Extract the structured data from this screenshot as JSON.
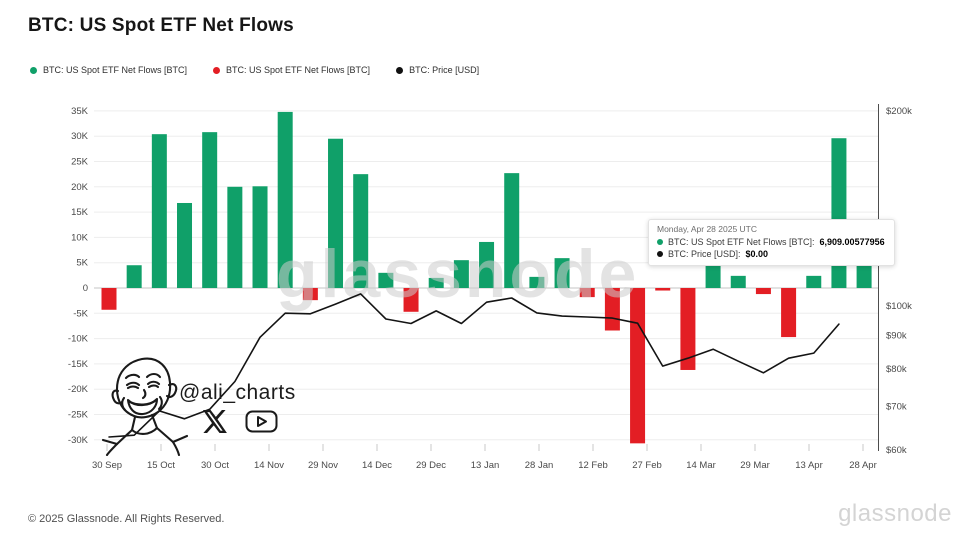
{
  "title": "BTC: US Spot ETF Net Flows",
  "legend": [
    {
      "label": "BTC: US Spot ETF Net Flows [BTC]",
      "color": "#10a069"
    },
    {
      "label": "BTC: US Spot ETF Net Flows [BTC]",
      "color": "#e31e24"
    },
    {
      "label": "BTC: Price [USD]",
      "color": "#111111"
    }
  ],
  "tooltip": {
    "title": "Monday, Apr 28 2025 UTC",
    "rows": [
      {
        "dot_color": "#10a069",
        "label": "BTC: US Spot ETF Net Flows [BTC]:",
        "value": "6,909.00577956"
      },
      {
        "dot_color": "#111111",
        "label": "BTC: Price [USD]:",
        "value": "$0.00"
      }
    ]
  },
  "annotation": {
    "handle": "@ali_charts"
  },
  "watermark": "glassnode",
  "footer": {
    "copyright": "© 2025 Glassnode. All Rights Reserved.",
    "brand": "glassnode"
  },
  "chart_data": {
    "type": "bar",
    "title": "BTC: US Spot ETF Net Flows",
    "x_tick_labels": [
      "30 Sep",
      "15 Oct",
      "30 Oct",
      "14 Nov",
      "29 Nov",
      "14 Dec",
      "29 Dec",
      "13 Jan",
      "28 Jan",
      "12 Feb",
      "27 Feb",
      "14 Mar",
      "29 Mar",
      "13 Apr",
      "28 Apr"
    ],
    "left_axis": {
      "tick_labels": [
        "35K",
        "30K",
        "25K",
        "20K",
        "15K",
        "10K",
        "5K",
        "0",
        "-5K",
        "-10K",
        "-15K",
        "-20K",
        "-25K",
        "-30K"
      ],
      "tick_values": [
        35000,
        30000,
        25000,
        20000,
        15000,
        10000,
        5000,
        0,
        -5000,
        -10000,
        -15000,
        -20000,
        -25000,
        -30000
      ]
    },
    "right_axis": {
      "scale": "log",
      "tick_labels": [
        "$200k",
        "$100k",
        "$90k",
        "$80k",
        "$70k",
        "$60k"
      ],
      "tick_values": [
        200000,
        100000,
        90000,
        80000,
        70000,
        60000
      ]
    },
    "series": [
      {
        "name": "BTC: US Spot ETF Net Flows [BTC]",
        "type": "bar",
        "axis": "left",
        "positive_color": "#10a069",
        "negative_color": "#e31e24",
        "x": [
          "30 Sep",
          "7 Oct",
          "14 Oct",
          "21 Oct",
          "28 Oct",
          "4 Nov",
          "11 Nov",
          "18 Nov",
          "25 Nov",
          "2 Dec",
          "9 Dec",
          "16 Dec",
          "23 Dec",
          "30 Dec",
          "6 Jan",
          "13 Jan",
          "20 Jan",
          "27 Jan",
          "3 Feb",
          "10 Feb",
          "17 Feb",
          "24 Feb",
          "3 Mar",
          "10 Mar",
          "17 Mar",
          "24 Mar",
          "31 Mar",
          "7 Apr",
          "14 Apr",
          "21 Apr",
          "28 Apr"
        ],
        "values": [
          -4300,
          4500,
          30400,
          16800,
          30800,
          20000,
          20100,
          34800,
          -2400,
          29500,
          22500,
          3000,
          -4700,
          2000,
          5500,
          9100,
          22700,
          2200,
          5900,
          -1800,
          -8400,
          -30700,
          -500,
          -16200,
          5300,
          2400,
          -1200,
          -9700,
          2400,
          29600,
          6909.00577956
        ]
      },
      {
        "name": "BTC: Price [USD]",
        "type": "line",
        "axis": "right",
        "color": "#141414",
        "x": [
          "30 Sep",
          "7 Oct",
          "14 Oct",
          "21 Oct",
          "28 Oct",
          "4 Nov",
          "11 Nov",
          "18 Nov",
          "25 Nov",
          "2 Dec",
          "9 Dec",
          "16 Dec",
          "23 Dec",
          "30 Dec",
          "6 Jan",
          "13 Jan",
          "20 Jan",
          "27 Jan",
          "3 Feb",
          "10 Feb",
          "17 Feb",
          "24 Feb",
          "3 Mar",
          "10 Mar",
          "17 Mar",
          "24 Mar",
          "31 Mar",
          "7 Apr",
          "14 Apr",
          "21 Apr"
        ],
        "values": [
          62800,
          63200,
          68900,
          67000,
          69300,
          76500,
          89500,
          97500,
          97300,
          100700,
          104400,
          95500,
          94000,
          98300,
          94000,
          101400,
          102900,
          97600,
          96500,
          96200,
          95800,
          94100,
          80800,
          83100,
          85800,
          82200,
          78900,
          83100,
          84600,
          93800
        ]
      }
    ]
  }
}
